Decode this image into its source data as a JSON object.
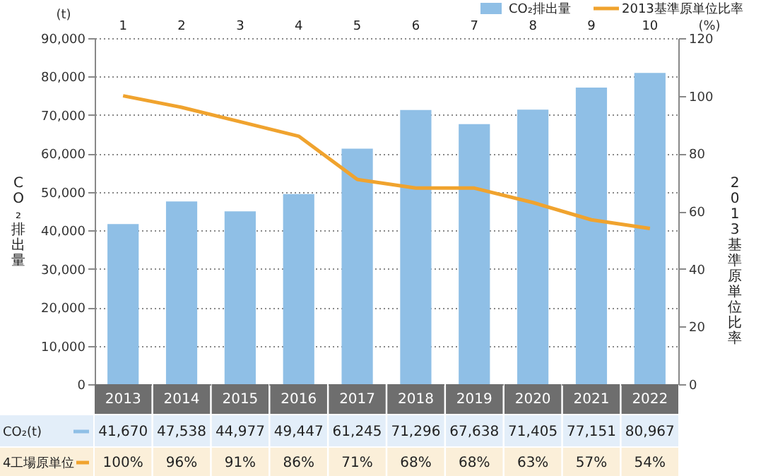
{
  "chart_data": {
    "type": "bar",
    "categories": [
      "2013",
      "2014",
      "2015",
      "2016",
      "2017",
      "2018",
      "2019",
      "2020",
      "2021",
      "2022"
    ],
    "series": [
      {
        "name": "CO₂排出量",
        "color": "#8fbfe6",
        "values": [
          41670,
          47538,
          44977,
          49447,
          61245,
          71296,
          67638,
          71405,
          77151,
          80967
        ],
        "value_labels": [
          "41,670",
          "47,538",
          "44,977",
          "49,447",
          "61,245",
          "71,296",
          "67,638",
          "71,405",
          "77,151",
          "80,967"
        ]
      },
      {
        "name": "2013基準原単位比率",
        "type": "line",
        "axis": "y2",
        "color": "#f0a32e",
        "values": [
          100,
          96,
          91,
          86,
          71,
          68,
          68,
          63,
          57,
          54
        ],
        "value_labels": [
          "100%",
          "96%",
          "91%",
          "86%",
          "71%",
          "68%",
          "68%",
          "63%",
          "57%",
          "54%"
        ]
      }
    ],
    "ylabel": "CO₂排出量",
    "y2label": "2013基準原単位比率",
    "ylim": [
      0,
      90000
    ],
    "yticks": [
      0,
      {
        "value": 10000,
        "label": "10,000"
      },
      {
        "value": 20000,
        "label": "20,000"
      },
      {
        "value": 30000,
        "label": "30,000"
      },
      {
        "value": 40000,
        "label": "40,000"
      },
      {
        "value": 50000,
        "label": "50,000"
      },
      {
        "value": 60000,
        "label": "60,000"
      },
      {
        "value": 70000,
        "label": "70,000"
      },
      {
        "value": 80000,
        "label": "80,000"
      },
      {
        "value": 90000,
        "label": "90,000"
      }
    ],
    "y2lim": [
      0,
      120
    ],
    "y2ticks": [
      0,
      20,
      40,
      60,
      80,
      100,
      120
    ],
    "grid": "y",
    "legend": "top right",
    "marker": "none",
    "line_style": "solid",
    "annotations": [
      "(t)",
      "(%)",
      "1",
      "2",
      "3",
      "4",
      "5",
      "6",
      "7",
      "8",
      "9",
      "10",
      "CO₂(t)",
      "4工場原単位"
    ]
  }
}
